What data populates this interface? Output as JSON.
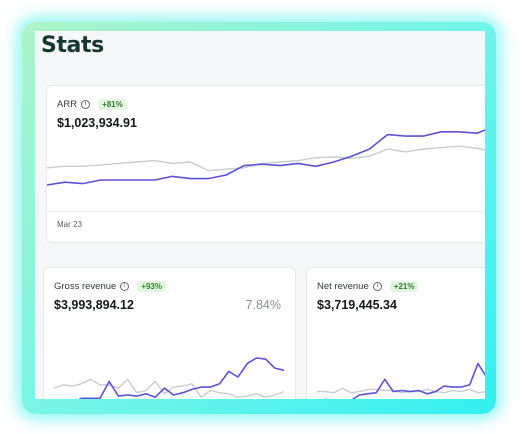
{
  "page": {
    "title": "Stats"
  },
  "colors": {
    "primary_line": "#5b52d6",
    "comparison_line": "#c9cccf",
    "badge_bg": "#e4f6df",
    "badge_text": "#2e7d32"
  },
  "cards": {
    "arr": {
      "label": "ARR",
      "change": "+81%",
      "value": "$1,023,934.91",
      "date_label": "Mar 23",
      "info_icon": "info-icon"
    },
    "gross": {
      "label": "Gross revenue",
      "change": "+93%",
      "value": "$3,993,894.12",
      "percent": "7.84%",
      "info_icon": "info-icon"
    },
    "net": {
      "label": "Net revenue",
      "change": "+21%",
      "value": "$3,719,445.34",
      "info_icon": "info-icon"
    }
  },
  "chart_data": [
    {
      "type": "line",
      "ylim": [
        0,
        100
      ],
      "series": [
        {
          "values": [
            18,
            22,
            20,
            25,
            25,
            25,
            25,
            30,
            27,
            27,
            32,
            45,
            47,
            45,
            48,
            44,
            50,
            58,
            68,
            88,
            86,
            86,
            92,
            92,
            90,
            100
          ]
        },
        {
          "values": [
            42,
            44,
            44,
            46,
            48,
            50,
            52,
            48,
            50,
            38,
            40,
            42,
            48,
            50,
            52,
            56,
            57,
            55,
            58,
            68,
            64,
            68,
            70,
            72,
            69,
            64
          ]
        }
      ]
    },
    {
      "type": "line",
      "ylim": [
        0,
        100
      ],
      "series": [
        {
          "values": [
            14,
            22,
            20,
            28,
            28,
            28,
            58,
            32,
            34,
            32,
            36,
            30,
            46,
            34,
            38,
            44,
            48,
            48,
            54,
            76,
            66,
            90,
            100,
            98,
            82,
            78
          ]
        },
        {
          "values": [
            46,
            52,
            50,
            54,
            62,
            52,
            52,
            46,
            62,
            38,
            42,
            58,
            36,
            48,
            50,
            54,
            30,
            42,
            38,
            36,
            30,
            32,
            36,
            30,
            34,
            40
          ]
        }
      ]
    },
    {
      "type": "line",
      "ylim": [
        0,
        100
      ],
      "series": [
        {
          "values": [
            20,
            26,
            24,
            24,
            24,
            34,
            36,
            38,
            62,
            40,
            42,
            40,
            42,
            36,
            40,
            50,
            48,
            48,
            52,
            90,
            66,
            70
          ]
        },
        {
          "values": [
            40,
            40,
            38,
            46,
            38,
            40,
            44,
            44,
            42,
            42,
            38,
            40,
            40,
            44,
            40,
            38,
            42,
            40,
            44,
            38,
            40,
            40
          ]
        }
      ]
    }
  ]
}
